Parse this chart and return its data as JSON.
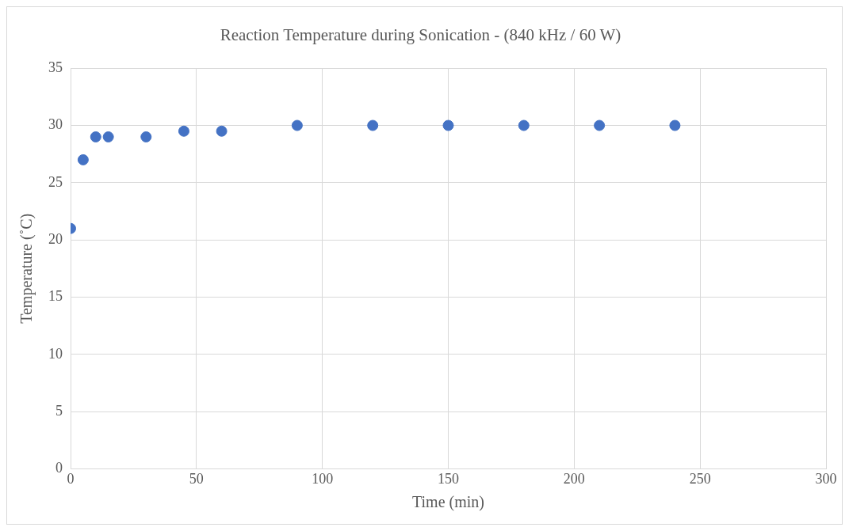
{
  "chart_data": {
    "type": "scatter",
    "title": "Reaction Temperature during Sonication - (840 kHz / 60 W)",
    "xlabel": "Time (min)",
    "ylabel": "Temperature (˚C)",
    "x": [
      0,
      5,
      10,
      15,
      30,
      45,
      60,
      90,
      120,
      150,
      180,
      210,
      240
    ],
    "series": [
      {
        "color": "#4472c4",
        "values": [
          21,
          27,
          29,
          29,
          29,
          29.5,
          29.5,
          30,
          30,
          30,
          30,
          30,
          30
        ]
      }
    ],
    "xlim": [
      0,
      300
    ],
    "xticks": [
      0,
      50,
      100,
      150,
      200,
      250,
      300
    ],
    "ylim": [
      0,
      35
    ],
    "yticks": [
      0,
      5,
      10,
      15,
      20,
      25,
      30,
      35
    ],
    "grid": true,
    "marker": "circle",
    "legend": false
  }
}
